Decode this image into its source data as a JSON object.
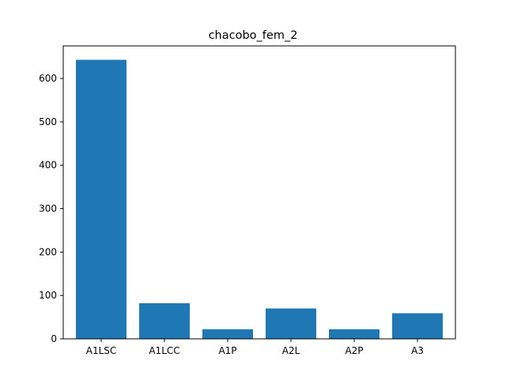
{
  "chart_data": {
    "type": "bar",
    "title": "chacobo_fem_2",
    "xlabel": "",
    "ylabel": "",
    "categories": [
      "A1LSC",
      "A1LCC",
      "A1P",
      "A2L",
      "A2P",
      "A3"
    ],
    "values": [
      643,
      82,
      22,
      70,
      22,
      59
    ],
    "ylim": [
      0,
      675
    ],
    "yticks": [
      0,
      100,
      200,
      300,
      400,
      500,
      600
    ],
    "grid": false,
    "legend": "none",
    "bar_color": "#1f77b4"
  }
}
